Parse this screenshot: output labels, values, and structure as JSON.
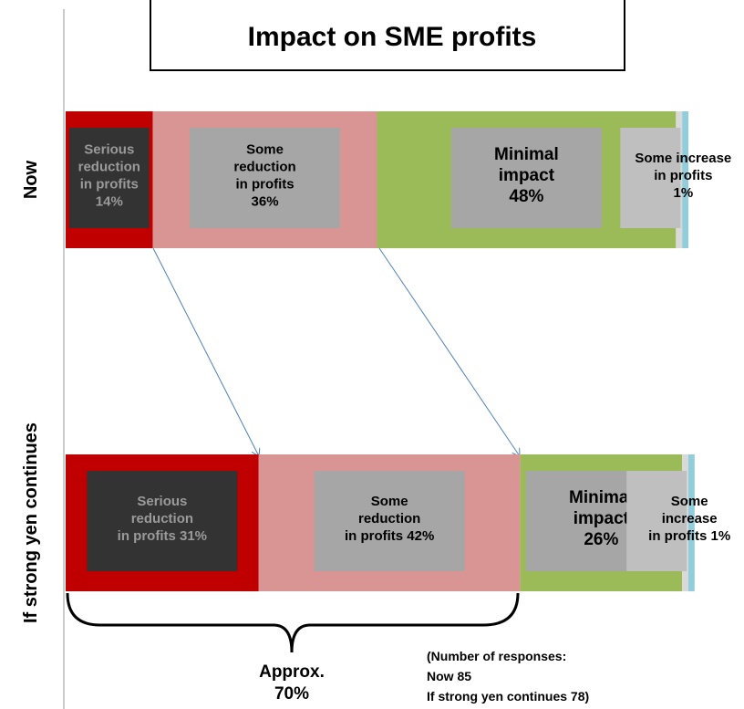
{
  "chart_data": {
    "type": "stacked-bar-horizontal",
    "title": "Impact on SME profits",
    "categories": [
      "Now",
      "If strong yen continues"
    ],
    "xlim": [
      0,
      100
    ],
    "series": [
      {
        "color": "#c00000",
        "values": [
          14,
          31
        ],
        "value_labels": [
          "Serious\nreduction\nin profits\n14%",
          "Serious\nreduction\nin profits 31%"
        ]
      },
      {
        "color": "#d99594",
        "values": [
          36,
          42
        ],
        "value_labels": [
          "Some\nreduction\nin profits\n36%",
          "Some\nreduction\nin profits 42%"
        ]
      },
      {
        "color": "#9bbb59",
        "values": [
          48,
          26
        ],
        "value_labels": [
          "Minimal\nimpact\n48%",
          "Minimal\nimpact\n26%"
        ]
      },
      {
        "color": "#d9d9d9",
        "values": [
          1,
          1
        ],
        "value_labels": [
          "Some increase\nin profits\n1%",
          "Some\nincrease\nin profits 1%"
        ]
      },
      {
        "color": "#92cddc",
        "values": [
          1,
          1
        ]
      }
    ],
    "brace_label": "Approx.\n70%",
    "note": "(Number of responses:\nNow 85\nIf strong yen continues 78)"
  }
}
